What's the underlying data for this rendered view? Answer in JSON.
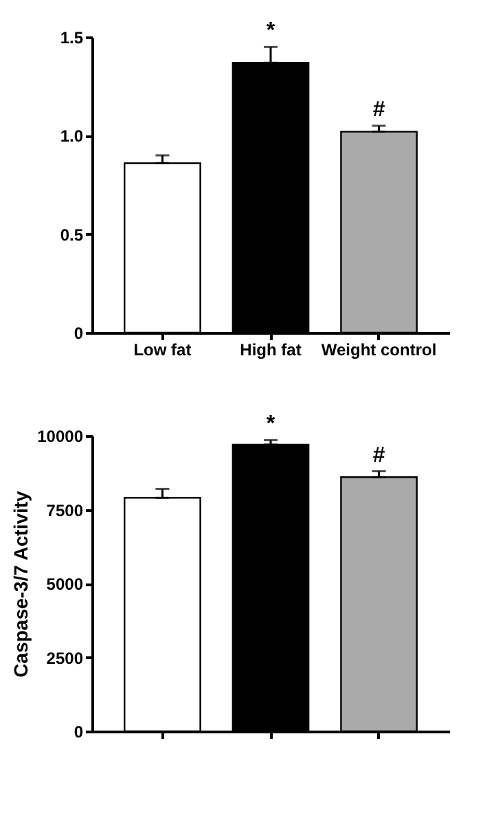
{
  "chart_data": [
    {
      "type": "bar",
      "categories": [
        "Low fat",
        "High fat",
        "Weight control"
      ],
      "values": [
        0.86,
        1.37,
        1.02
      ],
      "colors": [
        "#ffffff",
        "#000000",
        "#aaaaaa"
      ],
      "errors": [
        [
          0.86,
          0.9
        ],
        [
          1.37,
          1.45
        ],
        [
          1.02,
          1.05
        ]
      ],
      "ylim": [
        0,
        1.5
      ],
      "yticks": [
        0,
        0.5,
        {
          "value": 1,
          "label": "1.0"
        },
        1.5
      ],
      "annotations": [
        {
          "text": "*",
          "x": "High fat",
          "y": 1.45
        },
        {
          "text": "#",
          "x": "Weight control",
          "y": 1.05
        }
      ]
    },
    {
      "type": "bar",
      "categories": [
        null,
        null,
        null
      ],
      "values": [
        7900,
        9700,
        8600
      ],
      "colors": [
        "#ffffff",
        "#000000",
        "#aaaaaa"
      ],
      "errors": [
        [
          7900,
          8200
        ],
        [
          9700,
          9850
        ],
        [
          8600,
          8800
        ]
      ],
      "ylim": [
        0,
        10000
      ],
      "yticks": [
        0,
        2500,
        5000,
        7500,
        10000
      ],
      "ylabel": "Caspase-3/7 Activity",
      "tick_labels": "y",
      "annotations": [
        {
          "text": "*",
          "y": 9850
        },
        {
          "text": "#",
          "y": 8800
        }
      ]
    }
  ]
}
